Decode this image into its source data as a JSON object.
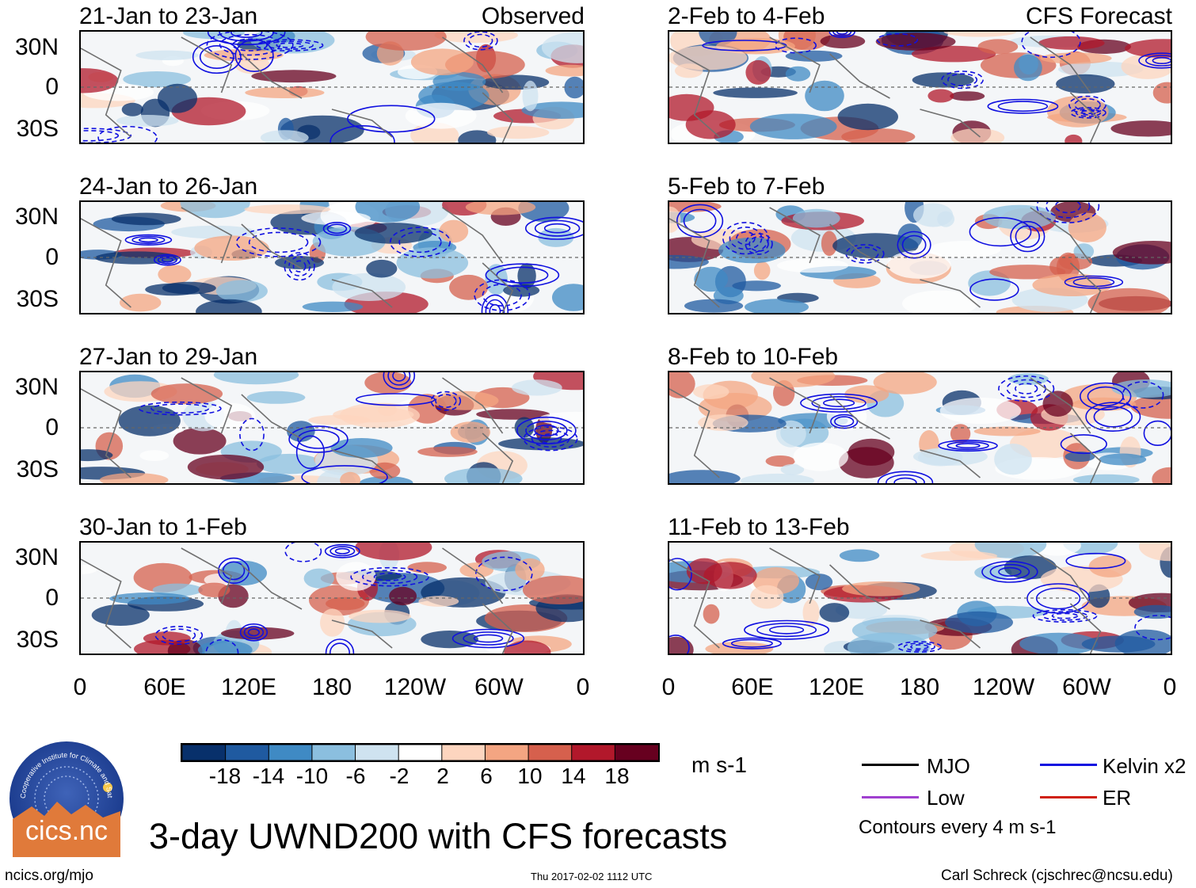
{
  "chart_data": {
    "type": "heatmap",
    "variable": "UWND200",
    "title": "3-day UWND200 with CFS forecasts",
    "units": "m s-1",
    "colorbar": {
      "ticks": [
        "-18",
        "-14",
        "-10",
        "-6",
        "-2",
        "2",
        "6",
        "10",
        "14",
        "18"
      ],
      "colors": [
        "#08306b",
        "#1f5aa0",
        "#3f8ac4",
        "#8bbfdf",
        "#cfe3f0",
        "#ffffff",
        "#fdd5bf",
        "#f4a582",
        "#d6604d",
        "#b2182b",
        "#67001f"
      ]
    },
    "x_ticks": [
      "0",
      "60E",
      "120E",
      "180",
      "120W",
      "60W",
      "0"
    ],
    "y_ticks": [
      "30N",
      "0",
      "30S"
    ],
    "columns": [
      {
        "label": "Observed",
        "panels": [
          {
            "title": "21-Jan to 23-Jan"
          },
          {
            "title": "24-Jan to 26-Jan"
          },
          {
            "title": "27-Jan to 29-Jan"
          },
          {
            "title": "30-Jan to 1-Feb"
          }
        ]
      },
      {
        "label": "CFS Forecast",
        "panels": [
          {
            "title": "2-Feb to 4-Feb"
          },
          {
            "title": "5-Feb to 7-Feb"
          },
          {
            "title": "8-Feb to 10-Feb"
          },
          {
            "title": "11-Feb to 13-Feb"
          }
        ]
      }
    ],
    "contour_legend": [
      {
        "label": "MJO",
        "color": "#000000"
      },
      {
        "label": "Kelvin x2",
        "color": "#1010e0"
      },
      {
        "label": "Low",
        "color": "#a040d0"
      },
      {
        "label": "ER",
        "color": "#d02010"
      }
    ],
    "contour_note": "Contours every 4 m s-1"
  },
  "logo": {
    "text": "cics.nc",
    "ring_text": "Cooperative Institute for Climate and Satellites"
  },
  "footer": {
    "left": "ncics.org/mjo",
    "center": "Thu 2017-02-02 1112 UTC",
    "right": "Carl Schreck (cjschrec@ncsu.edu)"
  }
}
